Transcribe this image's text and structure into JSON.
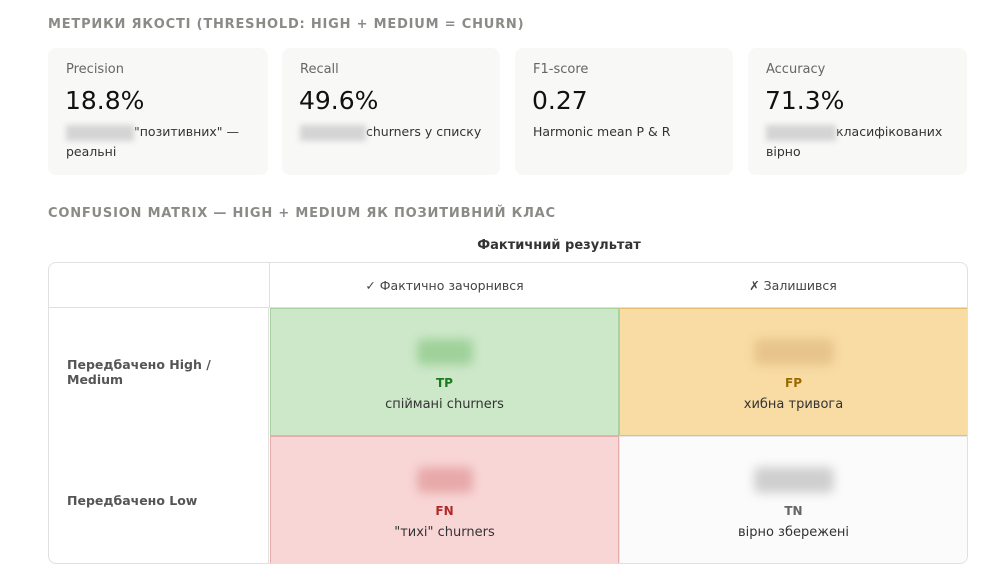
{
  "metrics": {
    "title": "МЕТРИКИ ЯКОСТІ (THRESHOLD: HIGH + MEDIUM = CHURN)",
    "cards": [
      {
        "label": "Precision",
        "value": "18.8%",
        "note": "\"позитивних\" — реальні"
      },
      {
        "label": "Recall",
        "value": "49.6%",
        "note": "churners у списку"
      },
      {
        "label": "F1-score",
        "value": "0.27",
        "note": "Harmonic mean P & R"
      },
      {
        "label": "Accuracy",
        "value": "71.3%",
        "note": "класифікованих вірно"
      }
    ]
  },
  "matrix": {
    "title": "CONFUSION MATRIX — HIGH + MEDIUM ЯК ПОЗИТИВНИЙ КЛАС",
    "axis_title": "Фактичний результат",
    "columns": [
      "✓ Фактично зачорнився",
      "✗ Залишився"
    ],
    "rows": [
      "Передбачено High / Medium",
      "Передбачено Low"
    ],
    "cells": [
      {
        "code": "TP",
        "desc": "спіймані churners"
      },
      {
        "code": "FP",
        "desc": "хибна тривога"
      },
      {
        "code": "FN",
        "desc": "\"тихі\" churners"
      },
      {
        "code": "TN",
        "desc": "вірно збережені"
      }
    ]
  }
}
